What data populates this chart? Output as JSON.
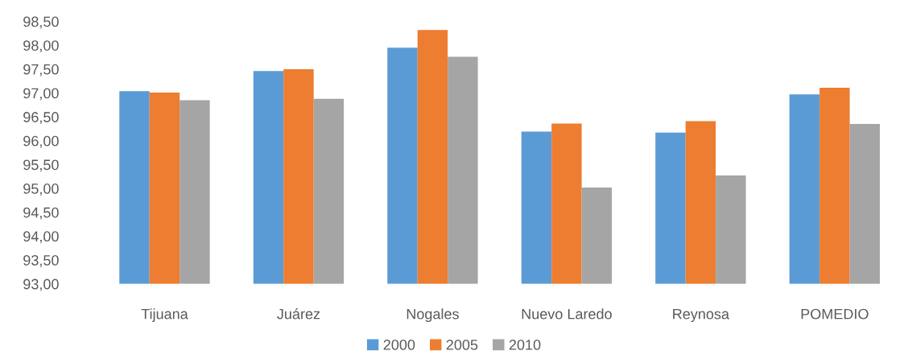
{
  "chart_data": {
    "type": "bar",
    "categories": [
      "Tijuana",
      "Juárez",
      "Nogales",
      "Nuevo Laredo",
      "Reynosa",
      "POMEDIO"
    ],
    "series": [
      {
        "name": "2000",
        "color": "#5b9bd5",
        "values": [
          97.04,
          97.46,
          97.95,
          96.19,
          96.17,
          96.97
        ]
      },
      {
        "name": "2005",
        "color": "#ed7d31",
        "values": [
          97.01,
          97.5,
          98.32,
          96.36,
          96.41,
          97.11
        ]
      },
      {
        "name": "2010",
        "color": "#a5a5a5",
        "values": [
          96.85,
          96.88,
          97.76,
          95.02,
          95.27,
          96.35
        ]
      }
    ],
    "ylim": [
      93,
      98.5
    ],
    "yticks": [
      {
        "value": 93,
        "label": "93,00"
      },
      {
        "value": 93.5,
        "label": "93,50"
      },
      {
        "value": 94,
        "label": "94,00"
      },
      {
        "value": 94.5,
        "label": "94,50"
      },
      {
        "value": 95,
        "label": "95,00"
      },
      {
        "value": 95.5,
        "label": "95,50"
      },
      {
        "value": 96,
        "label": "96,00"
      },
      {
        "value": 96.5,
        "label": "96,50"
      },
      {
        "value": 97,
        "label": "97,00"
      },
      {
        "value": 97.5,
        "label": "97,50"
      },
      {
        "value": 98,
        "label": "98,00"
      },
      {
        "value": 98.5,
        "label": "98,50"
      }
    ],
    "legend": "bottom"
  }
}
